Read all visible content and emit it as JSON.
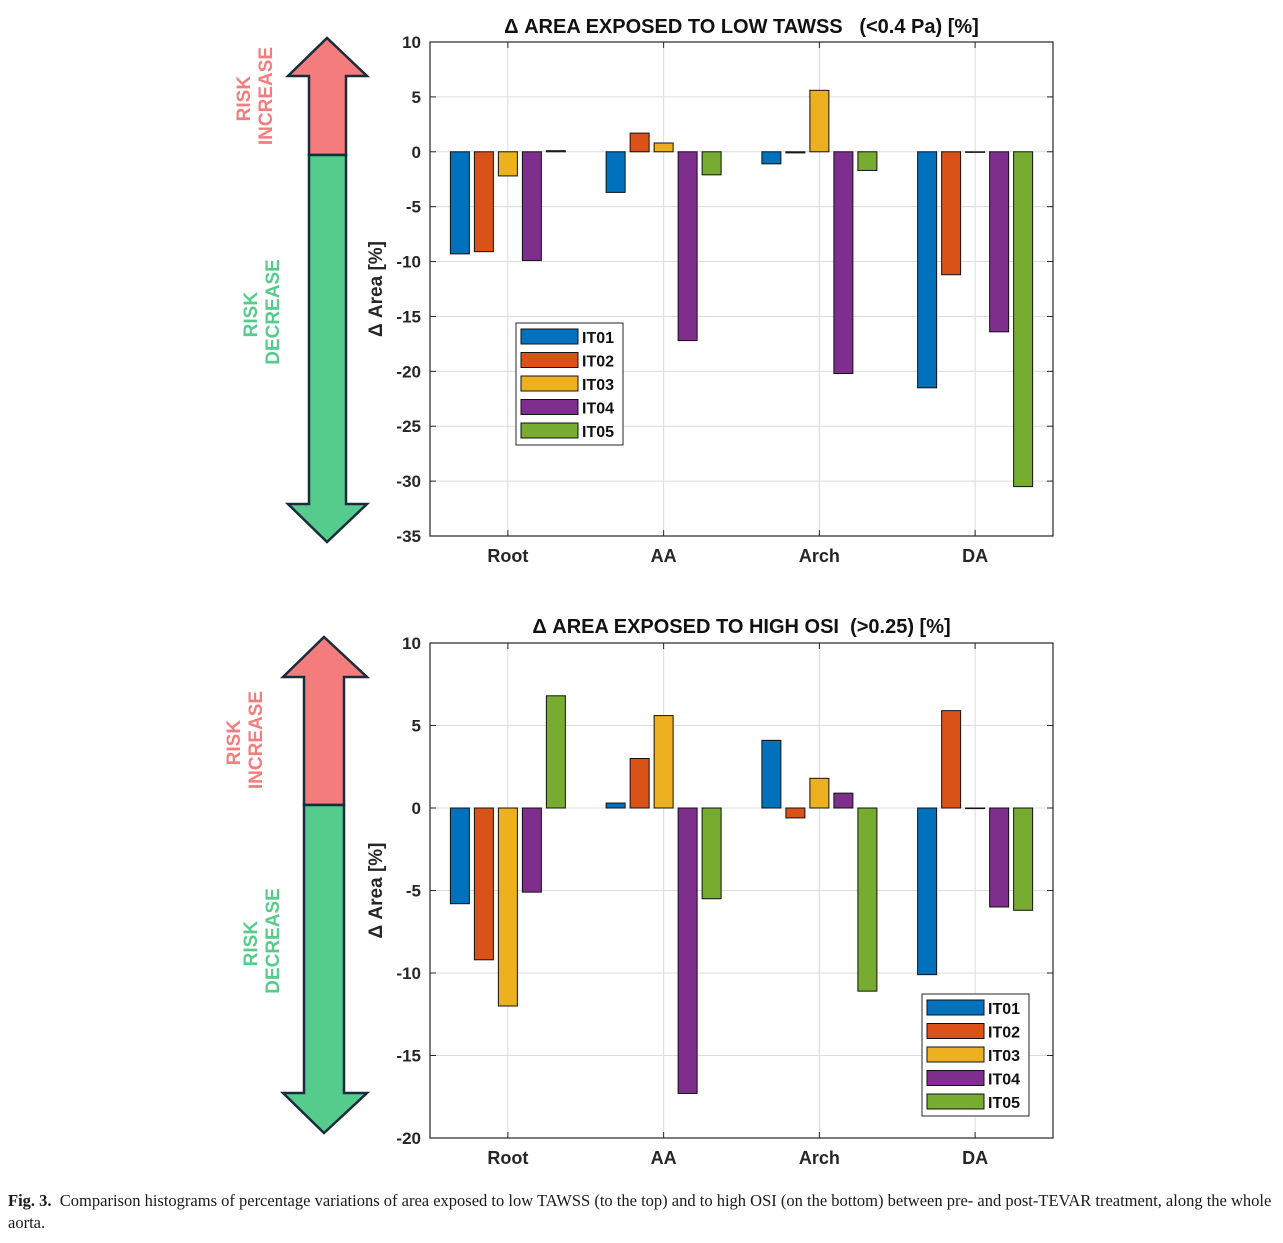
{
  "colors": {
    "risk_increase": "#f47c7c",
    "risk_decrease": "#55cc8c",
    "series": [
      "#0072bd",
      "#d95319",
      "#edb120",
      "#7e2f8e",
      "#77ac30"
    ]
  },
  "arrows": {
    "increase_label": [
      "RISK",
      "INCREASE"
    ],
    "decrease_label": [
      "RISK",
      "DECREASE"
    ]
  },
  "caption": {
    "label": "Fig. 3.",
    "text": "Comparison histograms of percentage variations of area exposed to low TAWSS (to the top) and to high OSI (on the bottom) between pre- and post-TEVAR treatment, along the whole aorta."
  },
  "chart_data": [
    {
      "type": "bar",
      "title": "Δ AREA EXPOSED TO LOW TAWSS   (<0.4 Pa) [%]",
      "xlabel": "",
      "ylabel": "Δ Area [%]",
      "ylim": [
        -35,
        10
      ],
      "yticks": [
        10,
        5,
        0,
        -5,
        -10,
        -15,
        -20,
        -25,
        -30,
        -35
      ],
      "grid": true,
      "legend_position": "middle-left",
      "categories": [
        "Root",
        "AA",
        "Arch",
        "DA"
      ],
      "series": [
        {
          "name": "IT01",
          "values": [
            -9.3,
            -3.7,
            -1.1,
            -21.5
          ]
        },
        {
          "name": "IT02",
          "values": [
            -9.1,
            1.7,
            -0.1,
            -11.2
          ]
        },
        {
          "name": "IT03",
          "values": [
            -2.2,
            0.8,
            5.6,
            0.0
          ]
        },
        {
          "name": "IT04",
          "values": [
            -9.9,
            -17.2,
            -20.2,
            -16.4
          ]
        },
        {
          "name": "IT05",
          "values": [
            0.1,
            -2.1,
            -1.7,
            -30.5
          ]
        }
      ]
    },
    {
      "type": "bar",
      "title": "Δ AREA EXPOSED TO HIGH OSI  (>0.25) [%]",
      "xlabel": "",
      "ylabel": "Δ Area [%]",
      "ylim": [
        -20,
        10
      ],
      "yticks": [
        10,
        5,
        0,
        -5,
        -10,
        -15,
        -20
      ],
      "grid": true,
      "legend_position": "bottom-right",
      "categories": [
        "Root",
        "AA",
        "Arch",
        "DA"
      ],
      "series": [
        {
          "name": "IT01",
          "values": [
            -5.8,
            0.3,
            4.1,
            -10.1
          ]
        },
        {
          "name": "IT02",
          "values": [
            -9.2,
            3.0,
            -0.6,
            5.9
          ]
        },
        {
          "name": "IT03",
          "values": [
            -12.0,
            5.6,
            1.8,
            0.0
          ]
        },
        {
          "name": "IT04",
          "values": [
            -5.1,
            -17.3,
            0.9,
            -6.0
          ]
        },
        {
          "name": "IT05",
          "values": [
            6.8,
            -5.5,
            -11.1,
            -6.2
          ]
        }
      ]
    }
  ]
}
